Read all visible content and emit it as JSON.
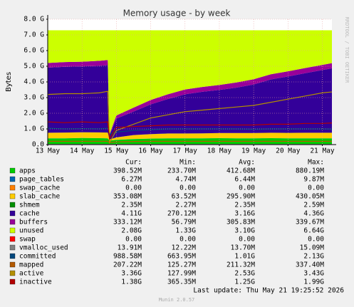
{
  "chart_data": {
    "type": "area",
    "title": "Memory usage - by week",
    "y_label": "Bytes",
    "watermark": "RRDTOOL / TOBI OETIKER",
    "last_update": "Last update: Thu May 21 19:25:52 2026",
    "footer": "Munin 2.0.57",
    "grid": true,
    "x": [
      13,
      13.5,
      14,
      14.5,
      14.75,
      14.8,
      15,
      15.5,
      16,
      16.5,
      17,
      17.5,
      18,
      18.5,
      19,
      19.5,
      20,
      20.5,
      21,
      21.28
    ],
    "xlim": [
      13,
      21.28
    ],
    "xticks": [
      {
        "value": 13,
        "label": "13 May"
      },
      {
        "value": 14,
        "label": "14 May"
      },
      {
        "value": 15,
        "label": "15 May"
      },
      {
        "value": 16,
        "label": "16 May"
      },
      {
        "value": 17,
        "label": "17 May"
      },
      {
        "value": 18,
        "label": "18 May"
      },
      {
        "value": 19,
        "label": "19 May"
      },
      {
        "value": 20,
        "label": "20 May"
      },
      {
        "value": 21,
        "label": "21 May"
      }
    ],
    "ylim": [
      0,
      8
    ],
    "yticks": [
      {
        "value": 0,
        "label": "0.0"
      },
      {
        "value": 1,
        "label": "1.0 G"
      },
      {
        "value": 2,
        "label": "2.0 G"
      },
      {
        "value": 3,
        "label": "3.0 G"
      },
      {
        "value": 4,
        "label": "4.0 G"
      },
      {
        "value": 5,
        "label": "5.0 G"
      },
      {
        "value": 6,
        "label": "6.0 G"
      },
      {
        "value": 7,
        "label": "7.0 G"
      },
      {
        "value": 8,
        "label": "8.0 G"
      }
    ],
    "legend_headers": [
      "Cur:",
      "Min:",
      "Avg:",
      "Max:"
    ],
    "series": [
      {
        "name": "apps",
        "color": "#00cc00",
        "style": "area",
        "stats": [
          "398.52M",
          "233.70M",
          "412.68M",
          "880.19M"
        ],
        "values": [
          0.4,
          0.4,
          0.42,
          0.41,
          0.4,
          0.25,
          0.3,
          0.35,
          0.38,
          0.4,
          0.4,
          0.4,
          0.41,
          0.4,
          0.4,
          0.41,
          0.4,
          0.4,
          0.4,
          0.4
        ]
      },
      {
        "name": "page_tables",
        "color": "#0066b3",
        "style": "area",
        "stats": [
          "6.27M",
          "4.74M",
          "6.44M",
          "9.87M"
        ],
        "values": [
          0.006,
          0.006,
          0.006,
          0.006,
          0.006,
          0.005,
          0.006,
          0.006,
          0.006,
          0.006,
          0.006,
          0.006,
          0.006,
          0.006,
          0.006,
          0.006,
          0.006,
          0.006,
          0.006,
          0.006
        ]
      },
      {
        "name": "swap_cache",
        "color": "#ff8000",
        "style": "area",
        "stats": [
          "0.00",
          "0.00",
          "0.00",
          "0.00"
        ],
        "values": [
          0,
          0,
          0,
          0,
          0,
          0,
          0,
          0,
          0,
          0,
          0,
          0,
          0,
          0,
          0,
          0,
          0,
          0,
          0,
          0
        ]
      },
      {
        "name": "slab_cache",
        "color": "#ffcc00",
        "style": "area",
        "stats": [
          "353.08M",
          "63.52M",
          "295.90M",
          "430.05M"
        ],
        "values": [
          0.35,
          0.36,
          0.36,
          0.36,
          0.36,
          0.07,
          0.15,
          0.25,
          0.28,
          0.3,
          0.3,
          0.31,
          0.32,
          0.33,
          0.33,
          0.34,
          0.34,
          0.35,
          0.35,
          0.35
        ]
      },
      {
        "name": "shmem",
        "color": "#008f00",
        "style": "area",
        "stats": [
          "2.35M",
          "2.27M",
          "2.35M",
          "2.59M"
        ],
        "values": [
          0.002,
          0.002,
          0.002,
          0.002,
          0.002,
          0.002,
          0.002,
          0.002,
          0.002,
          0.002,
          0.002,
          0.002,
          0.002,
          0.002,
          0.002,
          0.002,
          0.002,
          0.002,
          0.002,
          0.002
        ]
      },
      {
        "name": "cache",
        "color": "#330099",
        "style": "area",
        "stats": [
          "4.11G",
          "270.12M",
          "3.16G",
          "4.36G"
        ],
        "values": [
          4.15,
          4.2,
          4.2,
          4.25,
          4.3,
          0.27,
          1.2,
          1.5,
          1.9,
          2.2,
          2.5,
          2.65,
          2.75,
          2.9,
          3.1,
          3.4,
          3.6,
          3.8,
          4.0,
          4.11
        ]
      },
      {
        "name": "buffers",
        "color": "#990099",
        "style": "area",
        "stats": [
          "333.12M",
          "56.79M",
          "305.83M",
          "339.67M"
        ],
        "values": [
          0.3,
          0.3,
          0.3,
          0.32,
          0.33,
          0.06,
          0.2,
          0.25,
          0.28,
          0.3,
          0.31,
          0.31,
          0.32,
          0.33,
          0.33,
          0.33,
          0.33,
          0.33,
          0.33,
          0.33
        ]
      },
      {
        "name": "unused",
        "color": "#ccff00",
        "style": "area",
        "stats": [
          "2.08G",
          "1.33G",
          "3.10G",
          "6.64G"
        ],
        "values": [
          2.09,
          2.03,
          2.01,
          1.95,
          1.9,
          6.64,
          5.44,
          4.94,
          4.45,
          4.09,
          3.78,
          3.62,
          3.49,
          3.33,
          3.13,
          2.81,
          2.62,
          2.41,
          2.21,
          2.1
        ]
      },
      {
        "name": "swap",
        "color": "#ff0000",
        "style": "area",
        "stats": [
          "0.00",
          "0.00",
          "0.00",
          "0.00"
        ],
        "values": [
          0,
          0,
          0,
          0,
          0,
          0,
          0,
          0,
          0,
          0,
          0,
          0,
          0,
          0,
          0,
          0,
          0,
          0,
          0,
          0
        ]
      },
      {
        "name": "vmalloc_used",
        "color": "#808080",
        "style": "line",
        "stats": [
          "13.91M",
          "12.22M",
          "13.70M",
          "15.09M"
        ],
        "values": [
          0.014,
          0.014,
          0.014,
          0.014,
          0.014,
          0.012,
          0.014,
          0.014,
          0.014,
          0.014,
          0.014,
          0.014,
          0.014,
          0.014,
          0.014,
          0.014,
          0.014,
          0.014,
          0.014,
          0.014
        ]
      },
      {
        "name": "committed",
        "color": "#00487d",
        "style": "line",
        "stats": [
          "988.58M",
          "663.95M",
          "1.01G",
          "2.13G"
        ],
        "values": [
          1.05,
          1.0,
          1.02,
          1.0,
          1.05,
          0.66,
          0.8,
          0.9,
          0.95,
          1.0,
          1.0,
          1.0,
          1.0,
          1.0,
          0.98,
          1.0,
          1.0,
          1.0,
          1.0,
          0.99
        ]
      },
      {
        "name": "mapped",
        "color": "#b35a00",
        "style": "line",
        "stats": [
          "207.22M",
          "125.27M",
          "211.32M",
          "337.40M"
        ],
        "values": [
          0.21,
          0.21,
          0.21,
          0.21,
          0.21,
          0.13,
          0.18,
          0.2,
          0.21,
          0.21,
          0.21,
          0.21,
          0.21,
          0.21,
          0.21,
          0.21,
          0.21,
          0.21,
          0.21,
          0.21
        ]
      },
      {
        "name": "active",
        "color": "#b38f00",
        "style": "line",
        "stats": [
          "3.36G",
          "127.99M",
          "2.53G",
          "3.43G"
        ],
        "values": [
          3.2,
          3.25,
          3.25,
          3.3,
          3.4,
          0.13,
          0.9,
          1.3,
          1.7,
          1.9,
          2.1,
          2.2,
          2.3,
          2.4,
          2.5,
          2.7,
          2.9,
          3.1,
          3.3,
          3.36
        ]
      },
      {
        "name": "inactive",
        "color": "#b30000",
        "style": "line",
        "stats": [
          "1.38G",
          "365.35M",
          "1.25G",
          "1.99G"
        ],
        "values": [
          1.45,
          1.4,
          1.45,
          1.4,
          1.45,
          0.37,
          1.1,
          1.15,
          1.2,
          1.25,
          1.25,
          1.25,
          1.25,
          1.25,
          1.25,
          1.3,
          1.3,
          1.35,
          1.35,
          1.38
        ]
      }
    ]
  }
}
